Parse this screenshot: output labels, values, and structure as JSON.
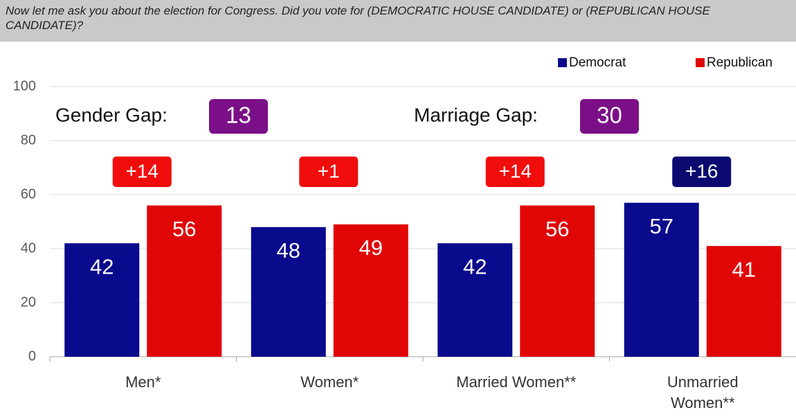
{
  "chart_data": {
    "type": "bar",
    "title": "Now let me ask you about the election for Congress. Did you vote for (DEMOCRATIC HOUSE CANDIDATE) or (REPUBLICAN HOUSE CANDIDATE)?",
    "categories": [
      "Men*",
      "Women*",
      "Married Women**",
      "Unmarried Women**"
    ],
    "series": [
      {
        "name": "Democrat",
        "color": "#0a0a8c",
        "values": [
          42,
          48,
          42,
          57
        ]
      },
      {
        "name": "Republican",
        "color": "#e00606",
        "values": [
          56,
          49,
          56,
          41
        ]
      }
    ],
    "ylim": [
      0,
      100
    ],
    "yticks": [
      0,
      20,
      40,
      60,
      80,
      100
    ],
    "grid": true,
    "legend": "top-right",
    "gaps": [
      {
        "label": "Gender Gap:",
        "value": 13
      },
      {
        "label": "Marriage Gap:",
        "value": 30
      }
    ],
    "gap_color": "#7b0f87",
    "margins": {
      "values": [
        14,
        1,
        14,
        16
      ],
      "value_labels": [
        "+14",
        "+1",
        "+14",
        "+16"
      ],
      "colors": [
        "#f20d0d",
        "#f20d0d",
        "#f20d0d",
        "#0a0a70"
      ]
    }
  }
}
